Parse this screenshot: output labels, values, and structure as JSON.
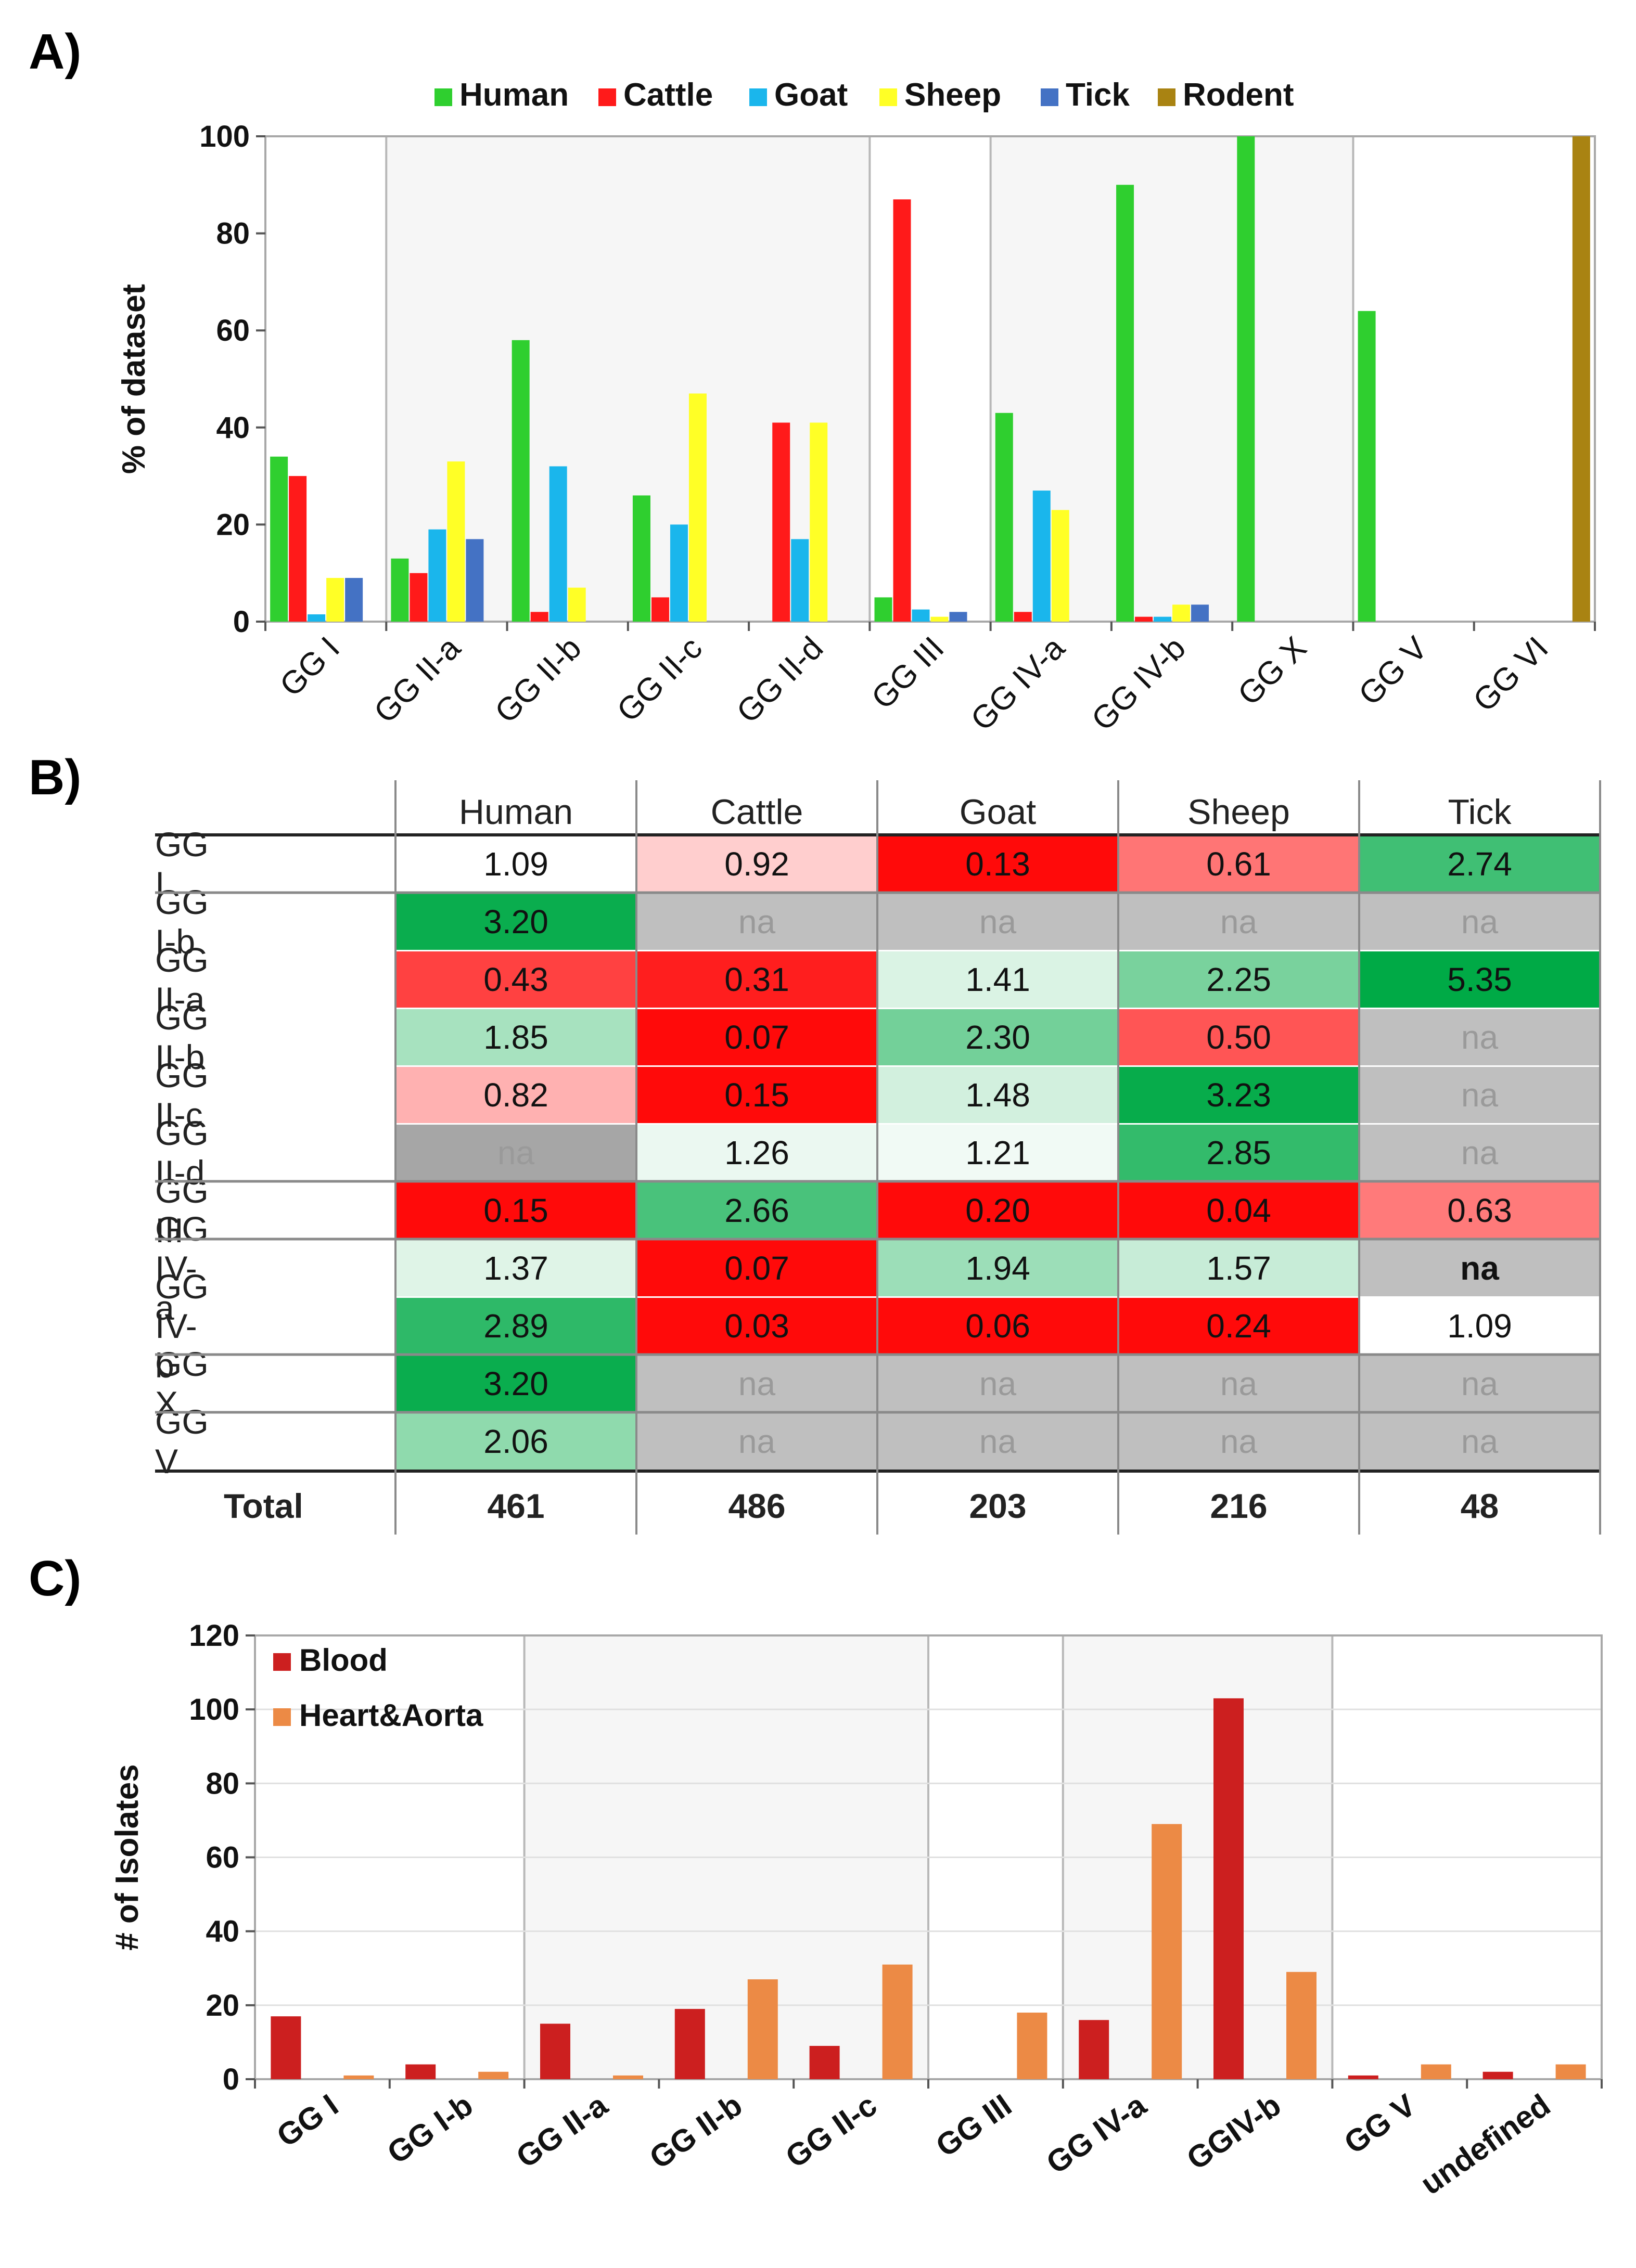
{
  "panels": {
    "a": "A)",
    "b": "B)",
    "c": "C)"
  },
  "colors": {
    "Human": "#2fcf2f",
    "Cattle": "#ff1a1a",
    "Goat": "#1ab6ec",
    "Sheep": "#ffff26",
    "Tick": "#4472c4",
    "Rodent": "#a98312",
    "Blood": "#cc1f1f",
    "HeartAorta": "#ec8a45"
  },
  "chart_data": [
    {
      "type": "bar",
      "title": "",
      "xlabel": "",
      "ylabel": "% of dataset",
      "ylim": [
        0,
        100
      ],
      "yticks": [
        "0",
        "20",
        "40",
        "60",
        "80",
        "100"
      ],
      "legend_position": "top",
      "categories": [
        "GG I",
        "GG II-a",
        "GG II-b",
        "GG II-c",
        "GG II-d",
        "GG III",
        "GG IV-a",
        "GG IV-b",
        "GG X",
        "GG V",
        "GG VI"
      ],
      "series": [
        {
          "name": "Human",
          "values": [
            34,
            13,
            58,
            26,
            0,
            5,
            43,
            90,
            100,
            64,
            0
          ]
        },
        {
          "name": "Cattle",
          "values": [
            30,
            10,
            2,
            5,
            41,
            87,
            2,
            1,
            0,
            0,
            0
          ]
        },
        {
          "name": "Goat",
          "values": [
            1.5,
            19,
            32,
            20,
            17,
            2.5,
            27,
            1,
            0,
            0,
            0
          ]
        },
        {
          "name": "Sheep",
          "values": [
            9,
            33,
            7,
            47,
            41,
            1,
            23,
            3.5,
            0,
            0,
            0
          ]
        },
        {
          "name": "Tick",
          "values": [
            9,
            17,
            0,
            0,
            0,
            2,
            0,
            3.5,
            0,
            0,
            0
          ]
        },
        {
          "name": "Rodent",
          "values": [
            0,
            0,
            0,
            0,
            0,
            0,
            0,
            0,
            0,
            0,
            100
          ]
        }
      ]
    },
    {
      "type": "table",
      "columns": [
        "Human",
        "Cattle",
        "Goat",
        "Sheep",
        "Tick"
      ],
      "rows": [
        {
          "label": "GG I",
          "values": [
            "1.09",
            "0.92",
            "0.13",
            "0.61",
            "2.74"
          ]
        },
        {
          "label": "GG I-b",
          "values": [
            "3.20",
            "na",
            "na",
            "na",
            "na"
          ]
        },
        {
          "label": "GG II-a",
          "values": [
            "0.43",
            "0.31",
            "1.41",
            "2.25",
            "5.35"
          ]
        },
        {
          "label": "GG II-b",
          "values": [
            "1.85",
            "0.07",
            "2.30",
            "0.50",
            "na"
          ]
        },
        {
          "label": "GG II-c",
          "values": [
            "0.82",
            "0.15",
            "1.48",
            "3.23",
            "na"
          ]
        },
        {
          "label": "GG II-d",
          "values": [
            "na",
            "1.26",
            "1.21",
            "2.85",
            "na"
          ]
        },
        {
          "label": "GG III",
          "values": [
            "0.15",
            "2.66",
            "0.20",
            "0.04",
            "0.63"
          ]
        },
        {
          "label": "GG IV-a",
          "values": [
            "1.37",
            "0.07",
            "1.94",
            "1.57",
            "na"
          ]
        },
        {
          "label": "GG IV-b",
          "values": [
            "2.89",
            "0.03",
            "0.06",
            "0.24",
            "1.09"
          ]
        },
        {
          "label": "GG X",
          "values": [
            "3.20",
            "na",
            "na",
            "na",
            "na"
          ]
        },
        {
          "label": "GG V",
          "values": [
            "2.06",
            "na",
            "na",
            "na",
            "na"
          ]
        }
      ],
      "total_label": "Total",
      "totals": [
        "461",
        "486",
        "203",
        "216",
        "48"
      ]
    },
    {
      "type": "bar",
      "title": "",
      "xlabel": "",
      "ylabel": "# of Isolates",
      "ylim": [
        0,
        120
      ],
      "yticks": [
        "0",
        "20",
        "40",
        "60",
        "80",
        "100",
        "120"
      ],
      "legend_position": "top-left",
      "categories": [
        "GG I",
        "GG I-b",
        "GG II-a",
        "GG II-b",
        "GG II-c",
        "GG III",
        "GG IV-a",
        "GGIV-b",
        "GG V",
        "undefined"
      ],
      "series": [
        {
          "name": "Blood",
          "values": [
            17,
            4,
            15,
            19,
            9,
            0,
            16,
            103,
            1,
            2
          ]
        },
        {
          "name": "Heart&Aorta",
          "values": [
            1,
            2,
            1,
            27,
            31,
            18,
            69,
            29,
            4,
            4
          ]
        }
      ]
    }
  ]
}
